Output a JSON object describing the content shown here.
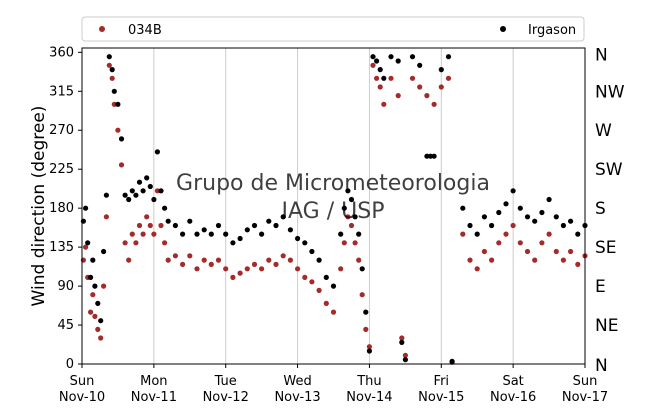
{
  "chart_data": {
    "type": "scatter",
    "ylabel": "Wind direction (degree)",
    "ylim": [
      0,
      365
    ],
    "yticks": [
      0,
      45,
      90,
      135,
      180,
      225,
      270,
      315,
      360
    ],
    "xlim": [
      "2023-11-10",
      "2023-11-17"
    ],
    "xticks": [
      {
        "line1": "Sun",
        "line2": "Nov-10",
        "day": 0
      },
      {
        "line1": "Mon",
        "line2": "Nov-11",
        "day": 1
      },
      {
        "line1": "Tue",
        "line2": "Nov-12",
        "day": 2
      },
      {
        "line1": "Wed",
        "line2": "Nov-13",
        "day": 3
      },
      {
        "line1": "Thu",
        "line2": "Nov-14",
        "day": 4
      },
      {
        "line1": "Fri",
        "line2": "Nov-15",
        "day": 5
      },
      {
        "line1": "Sat",
        "line2": "Nov-16",
        "day": 6
      },
      {
        "line1": "Sun",
        "line2": "Nov-17",
        "day": 7
      }
    ],
    "secondary_y": {
      "labels": [
        "N",
        "NE",
        "E",
        "SE",
        "S",
        "SW",
        "W",
        "NW",
        "N"
      ],
      "values": [
        0,
        45,
        90,
        135,
        180,
        225,
        270,
        315,
        360
      ]
    },
    "grid": "vertical-at-day-ticks",
    "legend": {
      "placement": "top"
    },
    "watermark": "Grupo de Micrometeorologia IAG / USP",
    "series": [
      {
        "name": "034B",
        "color": "#a52a2a",
        "x_units": "days since Nov-10 00:00",
        "points": [
          [
            0.02,
            120
          ],
          [
            0.05,
            135
          ],
          [
            0.08,
            100
          ],
          [
            0.12,
            60
          ],
          [
            0.15,
            80
          ],
          [
            0.18,
            55
          ],
          [
            0.22,
            40
          ],
          [
            0.26,
            30
          ],
          [
            0.3,
            90
          ],
          [
            0.34,
            170
          ],
          [
            0.38,
            345
          ],
          [
            0.42,
            330
          ],
          [
            0.45,
            300
          ],
          [
            0.5,
            270
          ],
          [
            0.55,
            230
          ],
          [
            0.6,
            140
          ],
          [
            0.65,
            120
          ],
          [
            0.7,
            150
          ],
          [
            0.75,
            140
          ],
          [
            0.8,
            160
          ],
          [
            0.85,
            150
          ],
          [
            0.9,
            170
          ],
          [
            0.95,
            160
          ],
          [
            1.0,
            150
          ],
          [
            1.05,
            200
          ],
          [
            1.1,
            160
          ],
          [
            1.15,
            140
          ],
          [
            1.2,
            120
          ],
          [
            1.3,
            125
          ],
          [
            1.4,
            115
          ],
          [
            1.5,
            125
          ],
          [
            1.6,
            110
          ],
          [
            1.7,
            120
          ],
          [
            1.8,
            115
          ],
          [
            1.9,
            120
          ],
          [
            2.0,
            110
          ],
          [
            2.1,
            100
          ],
          [
            2.2,
            105
          ],
          [
            2.3,
            110
          ],
          [
            2.4,
            115
          ],
          [
            2.5,
            110
          ],
          [
            2.6,
            120
          ],
          [
            2.7,
            115
          ],
          [
            2.8,
            125
          ],
          [
            2.9,
            120
          ],
          [
            3.0,
            110
          ],
          [
            3.1,
            100
          ],
          [
            3.2,
            95
          ],
          [
            3.3,
            85
          ],
          [
            3.4,
            70
          ],
          [
            3.5,
            60
          ],
          [
            3.6,
            110
          ],
          [
            3.65,
            140
          ],
          [
            3.7,
            170
          ],
          [
            3.75,
            160
          ],
          [
            3.8,
            140
          ],
          [
            3.85,
            120
          ],
          [
            3.9,
            80
          ],
          [
            3.95,
            40
          ],
          [
            4.0,
            20
          ],
          [
            4.05,
            345
          ],
          [
            4.1,
            330
          ],
          [
            4.15,
            320
          ],
          [
            4.2,
            300
          ],
          [
            4.3,
            330
          ],
          [
            4.4,
            310
          ],
          [
            4.45,
            30
          ],
          [
            4.5,
            10
          ],
          [
            4.6,
            330
          ],
          [
            4.7,
            320
          ],
          [
            4.8,
            310
          ],
          [
            4.9,
            300
          ],
          [
            5.0,
            320
          ],
          [
            5.1,
            330
          ],
          [
            5.15,
            2
          ],
          [
            5.3,
            150
          ],
          [
            5.4,
            120
          ],
          [
            5.5,
            110
          ],
          [
            5.6,
            130
          ],
          [
            5.7,
            120
          ],
          [
            5.8,
            140
          ],
          [
            5.9,
            150
          ],
          [
            6.0,
            160
          ],
          [
            6.1,
            140
          ],
          [
            6.2,
            130
          ],
          [
            6.3,
            120
          ],
          [
            6.4,
            140
          ],
          [
            6.5,
            150
          ],
          [
            6.6,
            130
          ],
          [
            6.7,
            120
          ],
          [
            6.8,
            130
          ],
          [
            6.9,
            115
          ],
          [
            7.0,
            125
          ]
        ]
      },
      {
        "name": "Irgason",
        "color": "#000000",
        "x_units": "days since Nov-10 00:00",
        "points": [
          [
            0.02,
            165
          ],
          [
            0.05,
            180
          ],
          [
            0.08,
            140
          ],
          [
            0.12,
            100
          ],
          [
            0.15,
            120
          ],
          [
            0.18,
            90
          ],
          [
            0.22,
            70
          ],
          [
            0.26,
            50
          ],
          [
            0.3,
            130
          ],
          [
            0.34,
            195
          ],
          [
            0.38,
            355
          ],
          [
            0.42,
            340
          ],
          [
            0.45,
            315
          ],
          [
            0.5,
            300
          ],
          [
            0.55,
            260
          ],
          [
            0.6,
            195
          ],
          [
            0.65,
            190
          ],
          [
            0.7,
            200
          ],
          [
            0.75,
            195
          ],
          [
            0.8,
            210
          ],
          [
            0.85,
            200
          ],
          [
            0.9,
            215
          ],
          [
            0.95,
            205
          ],
          [
            1.0,
            190
          ],
          [
            1.05,
            245
          ],
          [
            1.1,
            200
          ],
          [
            1.15,
            180
          ],
          [
            1.2,
            165
          ],
          [
            1.3,
            160
          ],
          [
            1.4,
            150
          ],
          [
            1.5,
            165
          ],
          [
            1.6,
            150
          ],
          [
            1.7,
            155
          ],
          [
            1.8,
            150
          ],
          [
            1.9,
            160
          ],
          [
            2.0,
            150
          ],
          [
            2.1,
            140
          ],
          [
            2.2,
            145
          ],
          [
            2.3,
            155
          ],
          [
            2.4,
            160
          ],
          [
            2.5,
            150
          ],
          [
            2.6,
            165
          ],
          [
            2.7,
            160
          ],
          [
            2.8,
            170
          ],
          [
            2.9,
            155
          ],
          [
            3.0,
            145
          ],
          [
            3.1,
            140
          ],
          [
            3.2,
            130
          ],
          [
            3.3,
            120
          ],
          [
            3.4,
            100
          ],
          [
            3.5,
            90
          ],
          [
            3.6,
            150
          ],
          [
            3.65,
            180
          ],
          [
            3.7,
            200
          ],
          [
            3.75,
            190
          ],
          [
            3.8,
            170
          ],
          [
            3.85,
            150
          ],
          [
            3.9,
            110
          ],
          [
            3.95,
            60
          ],
          [
            4.0,
            15
          ],
          [
            4.05,
            355
          ],
          [
            4.1,
            350
          ],
          [
            4.15,
            340
          ],
          [
            4.2,
            330
          ],
          [
            4.3,
            355
          ],
          [
            4.4,
            350
          ],
          [
            4.45,
            25
          ],
          [
            4.5,
            5
          ],
          [
            4.6,
            355
          ],
          [
            4.7,
            345
          ],
          [
            4.8,
            240
          ],
          [
            4.85,
            240
          ],
          [
            4.9,
            240
          ],
          [
            5.0,
            340
          ],
          [
            5.1,
            355
          ],
          [
            5.15,
            3
          ],
          [
            5.3,
            180
          ],
          [
            5.4,
            160
          ],
          [
            5.5,
            150
          ],
          [
            5.6,
            170
          ],
          [
            5.7,
            160
          ],
          [
            5.8,
            175
          ],
          [
            5.9,
            185
          ],
          [
            6.0,
            200
          ],
          [
            6.1,
            180
          ],
          [
            6.2,
            170
          ],
          [
            6.3,
            165
          ],
          [
            6.4,
            175
          ],
          [
            6.5,
            190
          ],
          [
            6.6,
            170
          ],
          [
            6.7,
            160
          ],
          [
            6.8,
            165
          ],
          [
            6.9,
            150
          ],
          [
            7.0,
            160
          ]
        ]
      }
    ]
  }
}
